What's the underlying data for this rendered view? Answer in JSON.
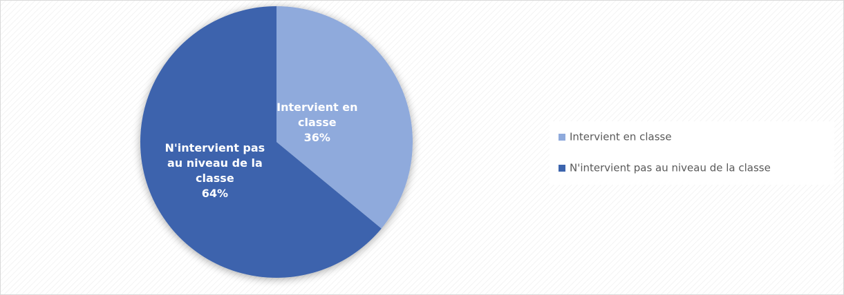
{
  "chart_data": {
    "type": "pie",
    "categories": [
      "Intervient en classe",
      "N'intervient pas au niveau de la classe"
    ],
    "values": [
      36,
      64
    ],
    "value_labels": [
      "36%",
      "64%"
    ],
    "colors": [
      "#8faadc",
      "#3c64ad"
    ],
    "legend": "right"
  }
}
